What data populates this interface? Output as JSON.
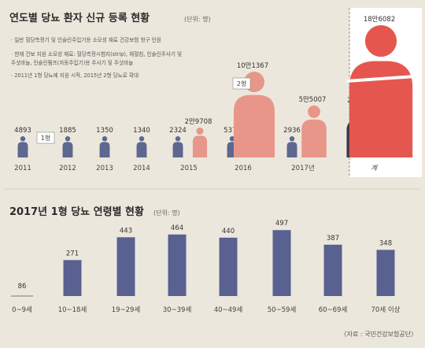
{
  "colors": {
    "background": "#ece7dc",
    "type1": "#5e6790",
    "type2": "#e8968a",
    "total_type1": "#3d3448",
    "total_type2": "#e5574e",
    "bar": "#596191"
  },
  "icons": [
    "person-icon"
  ],
  "chart_data": [
    {
      "type": "bar",
      "title": "연도별 당뇨 환자 신규 등록 현황",
      "unit": "(단위: 명)",
      "notes": [
        "· 일반 혈당측정기 및 인슐린주입기용 소모성 재료 건강보험 청구 인원",
        "· 현재 건보 지원 소모성 재료: 혈당측정시험지(strip), 채혈침, 인슐린주사기 및",
        "  주삿바늘, 인슐린펌프(자동주입기)용 주사기 및 주삿바늘",
        "· 2011년 1형 당뇨에 지원 시작, 2015년 2형 당뇨로 확대"
      ],
      "categories": [
        "2011",
        "2012",
        "2013",
        "2014",
        "2015",
        "2016",
        "2017년",
        "계"
      ],
      "series": [
        {
          "name": "1형",
          "values": [
            4893,
            1885,
            1350,
            1340,
            2324,
            5373,
            2936,
            20101
          ],
          "labels": [
            "4893",
            "1885",
            "1350",
            "1340",
            "2324",
            "5373",
            "2936",
            "2만101"
          ]
        },
        {
          "name": "2형",
          "values": [
            null,
            null,
            null,
            null,
            29708,
            101367,
            55007,
            186082
          ],
          "labels": [
            "",
            "",
            "",
            "",
            "2만9708",
            "10만1367",
            "5만5007",
            "18만6082"
          ]
        }
      ]
    },
    {
      "type": "bar",
      "title": "2017년 1형 당뇨 연령별 현황",
      "unit": "(단위: 명)",
      "categories": [
        "0~9세",
        "10~18세",
        "19~29세",
        "30~39세",
        "40~49세",
        "50~59세",
        "60~69세",
        "70세 이상"
      ],
      "values": [
        86,
        271,
        443,
        464,
        440,
        497,
        387,
        348
      ],
      "ylim": [
        0,
        540
      ]
    }
  ],
  "source": "〈자료 : 국민건강보험공단〉"
}
